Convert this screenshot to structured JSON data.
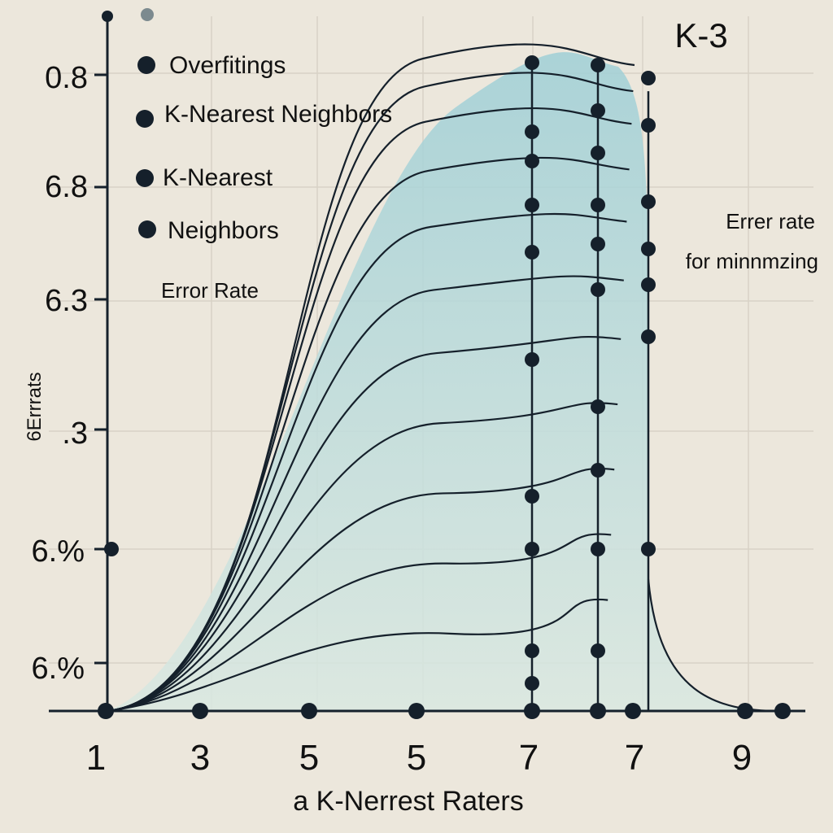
{
  "chart_data": {
    "type": "line",
    "title": "K-3",
    "ylabel": "6Errrats",
    "xlabel": "a K-Nerrest Raters",
    "x_tick_labels": [
      "1",
      "3",
      "5",
      "5",
      "7",
      "7",
      "9"
    ],
    "y_tick_labels": [
      "0.8",
      "6.8",
      "6.3",
      ".3",
      "6.%",
      "6.%"
    ],
    "legend": [
      {
        "label": "Overfitings"
      },
      {
        "label": "K-Nearest Neighbors"
      },
      {
        "label": "K-Nearest"
      },
      {
        "label": "Neighbors"
      }
    ],
    "annotations": [
      "Error Rate",
      "Errer rate",
      "for minnmzing"
    ],
    "grid": true,
    "colors": {
      "curve": "#15202b",
      "fill_top": "#a9d3d8",
      "fill_bottom": "#dbe8e2",
      "marker": "#15202b",
      "background": "#ece7dc"
    },
    "series_levels": [
      0.18,
      0.28,
      0.38,
      0.48,
      0.58,
      0.67,
      0.76,
      0.84,
      0.91,
      0.96,
      1.0
    ],
    "markers_left": [
      0.62,
      0.77,
      0.77,
      0.59,
      0.18,
      0.0
    ],
    "markers_center": [
      0.62,
      0.75,
      0.62,
      0.59,
      0.0,
      0.52,
      0.0
    ],
    "markers_right": [
      0.8,
      0.0,
      0.54,
      0.0,
      0.62,
      0.59,
      0.18,
      0.7,
      0.66,
      0.77,
      0.8,
      0.95,
      1.0
    ]
  }
}
